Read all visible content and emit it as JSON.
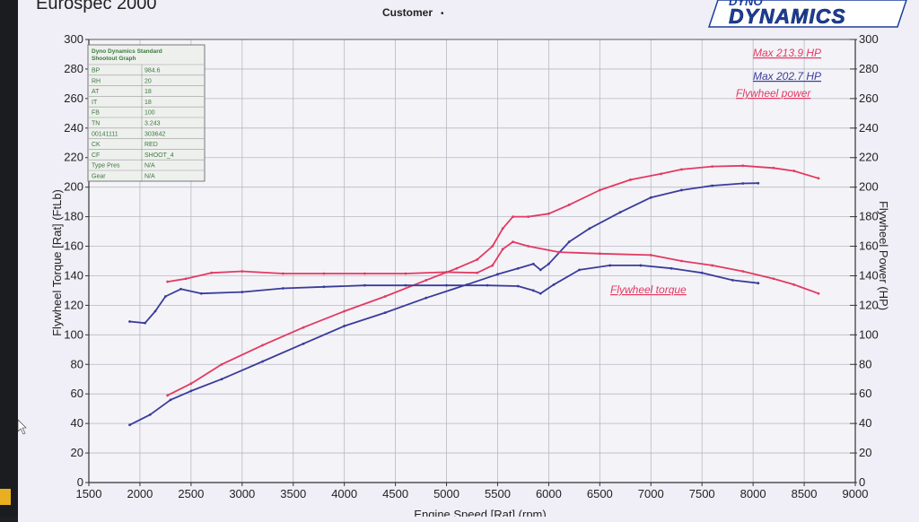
{
  "header": {
    "title": "Eurospec 2000",
    "customer_label": "Customer",
    "customer_mark": "•",
    "logo_top": "DYNO",
    "logo_main": "DYNAMICS"
  },
  "info_box": {
    "heading_line1": "Dyno Dynamics Standard",
    "heading_line2": "Shootout Graph",
    "rows": [
      [
        "BP",
        "984.6"
      ],
      [
        "RH",
        "20"
      ],
      [
        "AT",
        "18"
      ],
      [
        "IT",
        "18"
      ],
      [
        "FB",
        "100"
      ],
      [
        "TN",
        "3.243"
      ],
      [
        "00141111",
        "303642"
      ],
      [
        "CK",
        "RED"
      ],
      [
        "CF",
        "SHOOT_4"
      ],
      [
        "Type Pres",
        "N/A"
      ],
      [
        "Gear",
        "N/A"
      ]
    ]
  },
  "annotations": {
    "max_red": "Max 213.9 HP",
    "max_blue": "Max 202.7 HP",
    "flywheel_power": "Flywheel power",
    "flywheel_torque": "Flywheel torque"
  },
  "colors": {
    "red": "#e23a62",
    "blue": "#3a3c9a",
    "grid": "#b9b9c4",
    "axis": "#333333",
    "info_text": "#3c7a3c"
  },
  "chart_data": {
    "type": "line",
    "xlabel": "Engine Speed [Rat] (rpm)",
    "ylabel_left": "Flywheel Torque [Rat] (FtLb)",
    "ylabel_right": "Flywheel Power (HP)",
    "xlim": [
      1500,
      9000
    ],
    "ylim_left": [
      0,
      300
    ],
    "ylim_right": [
      0,
      300
    ],
    "x_ticks": [
      1500,
      2000,
      2500,
      3000,
      3500,
      4000,
      4500,
      5000,
      5500,
      6000,
      6500,
      7000,
      7500,
      8000,
      8500,
      9000
    ],
    "y_ticks_left": [
      0,
      20,
      40,
      60,
      80,
      100,
      120,
      140,
      160,
      180,
      200,
      220,
      240,
      260,
      280,
      300
    ],
    "y_ticks_right": [
      0,
      20,
      40,
      60,
      80,
      100,
      120,
      140,
      160,
      180,
      200,
      220,
      240,
      260,
      280,
      300
    ],
    "grid": true,
    "series": [
      {
        "name": "Max 213.9 HP",
        "color": "red",
        "kind": "power",
        "x": [
          2270,
          2500,
          2800,
          3200,
          3600,
          4000,
          4400,
          4800,
          5100,
          5300,
          5450,
          5550,
          5650,
          5800,
          6000,
          6200,
          6500,
          6800,
          7100,
          7300,
          7600,
          7900,
          8200,
          8400,
          8640
        ],
        "y": [
          59,
          67,
          80,
          93,
          105,
          116,
          126,
          137,
          145,
          151,
          160,
          172,
          180,
          180,
          182,
          188,
          198,
          205,
          209,
          212,
          214,
          214.5,
          213,
          211,
          206
        ]
      },
      {
        "name": "Max 202.7 HP",
        "color": "blue",
        "kind": "power",
        "x": [
          1900,
          2100,
          2300,
          2500,
          2800,
          3200,
          3600,
          4000,
          4400,
          4800,
          5200,
          5500,
          5700,
          5850,
          5920,
          6000,
          6200,
          6400,
          6700,
          7000,
          7300,
          7600,
          7900,
          8050
        ],
        "y": [
          39,
          46,
          56,
          62,
          70,
          82,
          94,
          106,
          115,
          125,
          134,
          141,
          145,
          148,
          144,
          148,
          163,
          172,
          183,
          193,
          198,
          201,
          202.5,
          202.7
        ]
      },
      {
        "name": "Flywheel torque",
        "color": "red",
        "kind": "torque",
        "x": [
          2270,
          2450,
          2700,
          3000,
          3400,
          3800,
          4200,
          4600,
          5000,
          5300,
          5450,
          5550,
          5650,
          5800,
          6100,
          6500,
          7000,
          7300,
          7600,
          7900,
          8200,
          8400,
          8640
        ],
        "y": [
          136,
          138,
          142,
          143,
          141.5,
          141.5,
          141.5,
          141.5,
          142.5,
          142,
          147,
          158,
          163,
          160,
          156,
          155,
          154,
          150,
          147,
          143,
          138,
          134,
          128
        ]
      },
      {
        "name": "Max 202.7 HP",
        "color": "blue",
        "kind": "torque",
        "x": [
          1900,
          2050,
          2150,
          2250,
          2400,
          2600,
          3000,
          3400,
          3800,
          4200,
          4600,
          5000,
          5400,
          5700,
          5850,
          5920,
          6050,
          6300,
          6600,
          6900,
          7200,
          7500,
          7800,
          8050
        ],
        "y": [
          109,
          108,
          116,
          126,
          131,
          128,
          129,
          131.5,
          132.5,
          133.5,
          133.5,
          133.5,
          133.5,
          133,
          130,
          128,
          134,
          144,
          147,
          147,
          145,
          142,
          137,
          135
        ]
      }
    ]
  }
}
